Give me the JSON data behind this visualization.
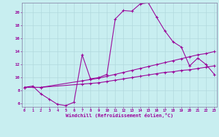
{
  "xlabel": "Windchill (Refroidissement éolien,°C)",
  "background_color": "#c8eef0",
  "grid_color": "#b0d8dc",
  "line_color": "#990099",
  "spine_color": "#8888aa",
  "x_min": 0,
  "x_max": 23,
  "y_min": 5.5,
  "y_max": 21.5,
  "yticks": [
    6,
    8,
    10,
    12,
    14,
    16,
    18,
    20
  ],
  "xticks": [
    0,
    1,
    2,
    3,
    4,
    5,
    6,
    7,
    8,
    9,
    10,
    11,
    12,
    13,
    14,
    15,
    16,
    17,
    18,
    19,
    20,
    21,
    22,
    23
  ],
  "line1_x": [
    0,
    1,
    2,
    3,
    4,
    5,
    6,
    7,
    8,
    9,
    10,
    11,
    12,
    13,
    14,
    15,
    16,
    17,
    18,
    19,
    20,
    21,
    22,
    23
  ],
  "line1_y": [
    8.5,
    8.7,
    7.5,
    6.7,
    5.9,
    5.7,
    6.2,
    13.5,
    9.8,
    10.0,
    10.5,
    19.0,
    20.3,
    20.2,
    21.3,
    21.5,
    19.3,
    17.2,
    15.5,
    14.7,
    11.8,
    13.0,
    12.0,
    10.5
  ],
  "line2_x": [
    0,
    2,
    7,
    8,
    9,
    10,
    11,
    12,
    13,
    14,
    15,
    16,
    17,
    18,
    19,
    20,
    21,
    22,
    23
  ],
  "line2_y": [
    8.5,
    8.5,
    9.5,
    9.7,
    9.9,
    10.2,
    10.5,
    10.8,
    11.1,
    11.4,
    11.7,
    12.0,
    12.3,
    12.6,
    12.9,
    13.2,
    13.5,
    13.7,
    14.0
  ],
  "line3_x": [
    0,
    2,
    7,
    8,
    9,
    10,
    11,
    12,
    13,
    14,
    15,
    16,
    17,
    18,
    19,
    20,
    21,
    22,
    23
  ],
  "line3_y": [
    8.5,
    8.5,
    9.0,
    9.1,
    9.2,
    9.4,
    9.6,
    9.8,
    10.0,
    10.2,
    10.4,
    10.6,
    10.8,
    10.9,
    11.1,
    11.2,
    11.4,
    11.6,
    11.8
  ]
}
